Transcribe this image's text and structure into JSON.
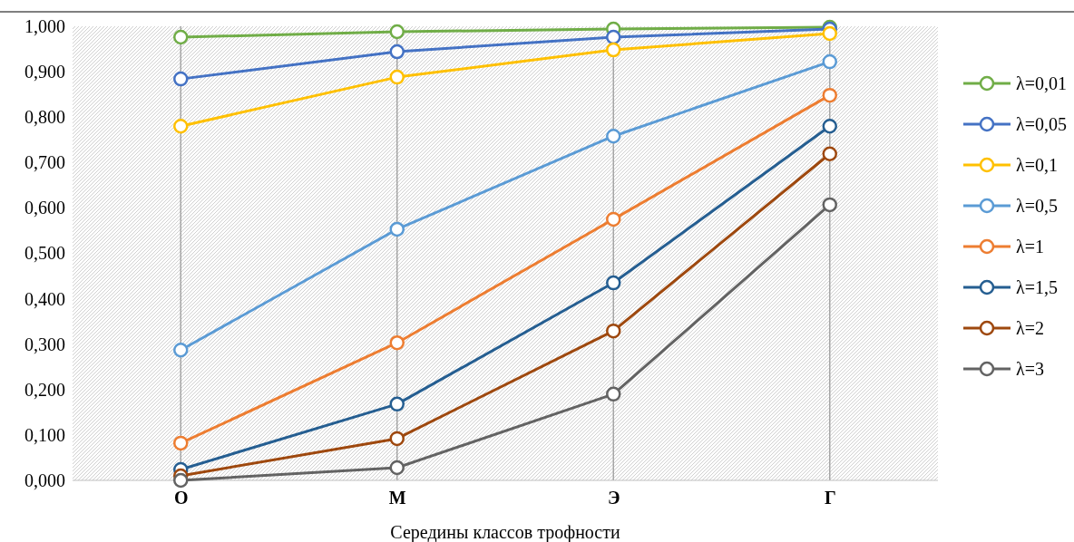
{
  "chart_data": {
    "type": "line",
    "xlabel": "Середины классов трофности",
    "categories": [
      "О",
      "М",
      "Э",
      "Г"
    ],
    "ylim": [
      0,
      1
    ],
    "yticks": [
      {
        "value": 0,
        "label": "0,000"
      },
      {
        "value": 0.1,
        "label": "0,100"
      },
      {
        "value": 0.2,
        "label": "0,200"
      },
      {
        "value": 0.3,
        "label": "0,300"
      },
      {
        "value": 0.4,
        "label": "0,400"
      },
      {
        "value": 0.5,
        "label": "0,500"
      },
      {
        "value": 0.6,
        "label": "0,600"
      },
      {
        "value": 0.7,
        "label": "0,700"
      },
      {
        "value": 0.8,
        "label": "0,800"
      },
      {
        "value": 0.9,
        "label": "0,900"
      },
      {
        "value": 1,
        "label": "1,000"
      }
    ],
    "grid": "x",
    "legend": "right",
    "marker": "circle",
    "line_style": "solid",
    "series": [
      {
        "name": "λ=0,01",
        "color": "#70ad47",
        "values": [
          0.976,
          0.988,
          0.994,
          0.998
        ]
      },
      {
        "name": "λ=0,05",
        "color": "#4472c4",
        "values": [
          0.884,
          0.944,
          0.976,
          0.994
        ]
      },
      {
        "name": "λ=0,1",
        "color": "#ffc000",
        "values": [
          0.78,
          0.888,
          0.948,
          0.984
        ]
      },
      {
        "name": "λ=0,5",
        "color": "#5b9bd5",
        "values": [
          0.287,
          0.553,
          0.758,
          0.922
        ]
      },
      {
        "name": "λ=1",
        "color": "#ed7d31",
        "values": [
          0.082,
          0.303,
          0.575,
          0.848
        ]
      },
      {
        "name": "λ=1,5",
        "color": "#255e91",
        "values": [
          0.024,
          0.168,
          0.435,
          0.78
        ]
      },
      {
        "name": "λ=2",
        "color": "#9e480e",
        "values": [
          0.01,
          0.092,
          0.329,
          0.719
        ]
      },
      {
        "name": "λ=3",
        "color": "#636363",
        "values": [
          0,
          0.028,
          0.19,
          0.607
        ]
      }
    ]
  }
}
